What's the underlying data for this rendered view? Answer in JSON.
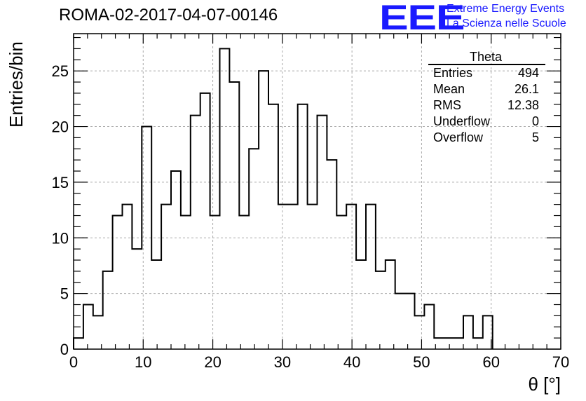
{
  "header": {
    "run_title": "ROMA-02-2017-04-07-00146",
    "logo_text": "EEE",
    "logo_line1": "Extreme Energy Events",
    "logo_line2": "La Scienza nelle Scuole"
  },
  "stats": {
    "title": "Theta",
    "rows": [
      {
        "label": "Entries",
        "value": "494"
      },
      {
        "label": "Mean",
        "value": "26.1"
      },
      {
        "label": "RMS",
        "value": "12.38"
      },
      {
        "label": "Underflow",
        "value": "0"
      },
      {
        "label": "Overflow",
        "value": "5"
      }
    ]
  },
  "colors": {
    "logo": "#1a1aff",
    "histogram": "#000000",
    "grid": "#aaaaaa"
  },
  "chart_data": {
    "type": "histogram",
    "xlabel": "θ [°]",
    "ylabel": "Entries/bin",
    "xlim": [
      0,
      70
    ],
    "ylim": [
      0,
      28.35
    ],
    "x_ticks": [
      0,
      10,
      20,
      30,
      40,
      50,
      60,
      70
    ],
    "y_ticks": [
      0,
      5,
      10,
      15,
      20,
      25
    ],
    "grid": true,
    "bin_width": 1.4,
    "bin_edges_start": 0,
    "values": [
      1,
      4,
      3,
      7,
      12,
      13,
      9,
      20,
      8,
      13,
      16,
      12,
      21,
      23,
      12,
      27,
      24,
      12,
      18,
      25,
      22,
      13,
      13,
      22,
      13,
      21,
      17,
      12,
      13,
      8,
      13,
      7,
      8,
      5,
      5,
      3,
      4,
      1,
      1,
      1,
      3,
      1,
      3
    ]
  }
}
